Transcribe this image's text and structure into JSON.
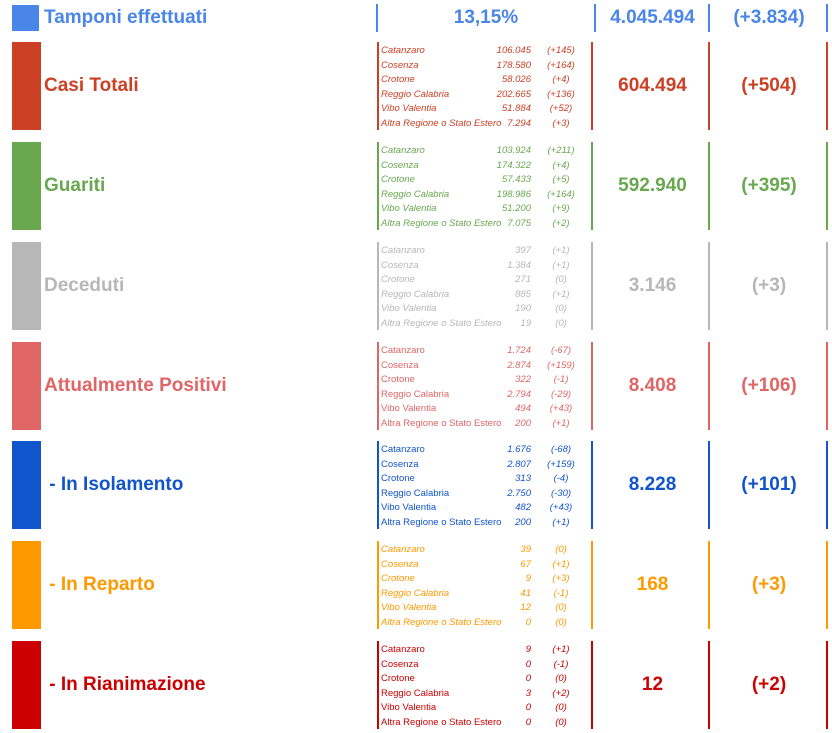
{
  "tamponi": {
    "label": "Tamponi effettuati",
    "percent": "13,15%",
    "total": "4.045.494",
    "delta": "(+3.834)",
    "color": "#4a86e8"
  },
  "sections": [
    {
      "id": "casi",
      "label": "Casi Totali",
      "total": "604.494",
      "delta": "(+504)",
      "color": "#cc4125",
      "rows": [
        [
          "Catanzaro",
          "106.045",
          "(+145)"
        ],
        [
          "Cosenza",
          "178.580",
          "(+164)"
        ],
        [
          "Crotone",
          "58.026",
          "(+4)"
        ],
        [
          "Reggio Calabria",
          "202.665",
          "(+136)"
        ],
        [
          "Vibo Valentia",
          "51.884",
          "(+52)"
        ],
        [
          "Altra Regione o Stato Estero",
          "7.294",
          "(+3)"
        ]
      ]
    },
    {
      "id": "guariti",
      "label": "Guariti",
      "total": "592.940",
      "delta": "(+395)",
      "color": "#6aa84f",
      "rows": [
        [
          "Catanzaro",
          "103.924",
          "(+211)"
        ],
        [
          "Cosenza",
          "174.322",
          "(+4)"
        ],
        [
          "Crotone",
          "57.433",
          "(+5)"
        ],
        [
          "Reggio Calabria",
          "198.986",
          "(+164)"
        ],
        [
          "Vibo Valentia",
          "51.200",
          "(+9)"
        ],
        [
          "Altra Regione o Stato Estero",
          "7.075",
          "(+2)"
        ]
      ]
    },
    {
      "id": "deceduti",
      "label": "Deceduti",
      "total": "3.146",
      "delta": "(+3)",
      "color": "#b7b7b7",
      "rows": [
        [
          "Catanzaro",
          "397",
          "(+1)"
        ],
        [
          "Cosenza",
          "1.384",
          "(+1)"
        ],
        [
          "Crotone",
          "271",
          "(0)"
        ],
        [
          "Reggio Calabria",
          "885",
          "(+1)"
        ],
        [
          "Vibo Valentia",
          "190",
          "(0)"
        ],
        [
          "Altra Regione o Stato Estero",
          "19",
          "(0)"
        ]
      ]
    },
    {
      "id": "positivi",
      "label": "Attualmente Positivi",
      "total": "8.408",
      "delta": "(+106)",
      "color": "#e06666",
      "rows": [
        [
          "Catanzaro",
          "1.724",
          "(-67)"
        ],
        [
          "Cosenza",
          "2.874",
          "(+159)"
        ],
        [
          "Crotone",
          "322",
          "(-1)"
        ],
        [
          "Reggio Calabria",
          "2.794",
          "(-29)"
        ],
        [
          "Vibo Valentia",
          "494",
          "(+43)"
        ],
        [
          "Altra Regione o Stato Estero",
          "200",
          "(+1)"
        ]
      ]
    },
    {
      "id": "isolamento",
      "label": " - In Isolamento",
      "total": "8.228",
      "delta": "(+101)",
      "color": "#1155cc",
      "rows": [
        [
          "Catanzaro",
          "1.676",
          "(-68)"
        ],
        [
          "Cosenza",
          "2.807",
          "(+159)"
        ],
        [
          "Crotone",
          "313",
          "(-4)"
        ],
        [
          "Reggio Calabria",
          "2.750",
          "(-30)"
        ],
        [
          "Vibo Valentia",
          "482",
          "(+43)"
        ],
        [
          "Altra Regione o Stato Estero",
          "200",
          "(+1)"
        ]
      ]
    },
    {
      "id": "reparto",
      "label": " - In Reparto",
      "total": "168",
      "delta": "(+3)",
      "color": "#ff9900",
      "rows": [
        [
          "Catanzaro",
          "39",
          "(0)"
        ],
        [
          "Cosenza",
          "67",
          "(+1)"
        ],
        [
          "Crotone",
          "9",
          "(+3)"
        ],
        [
          "Reggio Calabria",
          "41",
          "(-1)"
        ],
        [
          "Vibo Valentia",
          "12",
          "(0)"
        ],
        [
          "Altra Regione o Stato Estero",
          "0",
          "(0)"
        ]
      ]
    },
    {
      "id": "rianimazione",
      "label": " - In Rianimazione",
      "total": "12",
      "delta": "(+2)",
      "color": "#cc0000",
      "rows": [
        [
          "Catanzaro",
          "9",
          "(+1)"
        ],
        [
          "Cosenza",
          "0",
          "(-1)"
        ],
        [
          "Crotone",
          "0",
          "(0)"
        ],
        [
          "Reggio Calabria",
          "3",
          "(+2)"
        ],
        [
          "Vibo Valentia",
          "0",
          "(0)"
        ],
        [
          "Altra Regione o Stato Estero",
          "0",
          "(0)"
        ]
      ]
    }
  ]
}
